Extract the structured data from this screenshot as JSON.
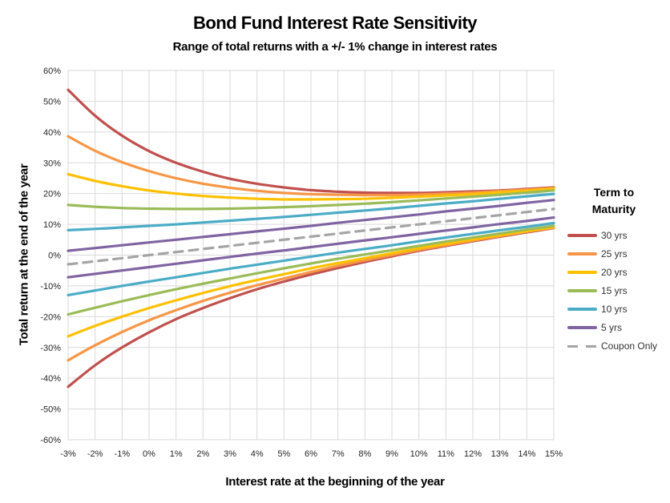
{
  "chart_data": {
    "type": "line",
    "title": "Bond Fund Interest Rate Sensitivity",
    "subtitle": "Range of total returns with a +/- 1% change in interest rates",
    "xlabel": "Interest rate at the beginning of the year",
    "ylabel": "Total return at the end of the year",
    "legend_title": "Term to Maturity",
    "legend_position": "right",
    "grid": true,
    "xlim": [
      -3,
      15
    ],
    "ylim": [
      -60,
      60
    ],
    "x": [
      -3,
      -2,
      -1,
      0,
      1,
      2,
      3,
      4,
      5,
      6,
      7,
      8,
      9,
      10,
      11,
      12,
      13,
      14,
      15
    ],
    "x_tick_labels": [
      "-3%",
      "-2%",
      "-1%",
      "0%",
      "1%",
      "2%",
      "3%",
      "4%",
      "5%",
      "6%",
      "7%",
      "8%",
      "9%",
      "10%",
      "11%",
      "12%",
      "13%",
      "14%",
      "15%"
    ],
    "y_ticks": [
      60,
      50,
      40,
      30,
      20,
      10,
      0,
      -10,
      -20,
      -30,
      -40,
      -50,
      -60
    ],
    "y_tick_labels": [
      "60%",
      "50%",
      "40%",
      "30%",
      "20%",
      "10%",
      "0%",
      "-10%",
      "-20%",
      "-30%",
      "-40%",
      "-50%",
      "-60%"
    ],
    "colors": {
      "grid": "#D9D9D9",
      "plot_border": "#D9D9D9",
      "tick_text": "#262626"
    },
    "series": [
      {
        "name": "30 yrs",
        "color": "#C0504D",
        "style": "solid",
        "upper": [
          53.7,
          45.3,
          38.8,
          33.8,
          30.0,
          27.1,
          24.8,
          23.2,
          22.0,
          21.1,
          20.6,
          20.3,
          20.2,
          20.2,
          20.4,
          20.7,
          21.0,
          21.5,
          22.0
        ],
        "lower": [
          -42.8,
          -35.8,
          -30.0,
          -25.1,
          -20.8,
          -17.2,
          -14.0,
          -11.1,
          -8.6,
          -6.3,
          -4.2,
          -2.2,
          -0.4,
          1.4,
          3.0,
          4.5,
          6.0,
          7.4,
          8.8
        ]
      },
      {
        "name": "25 yrs",
        "color": "#F79646",
        "style": "solid",
        "upper": [
          38.6,
          33.9,
          30.2,
          27.3,
          25.0,
          23.2,
          21.9,
          20.9,
          20.2,
          19.8,
          19.6,
          19.5,
          19.5,
          19.7,
          20.0,
          20.3,
          20.8,
          21.3,
          21.8
        ],
        "lower": [
          -34.2,
          -29.3,
          -25.0,
          -21.2,
          -17.9,
          -14.9,
          -12.2,
          -9.8,
          -7.6,
          -5.5,
          -3.5,
          -1.7,
          0.0,
          1.7,
          3.2,
          4.7,
          6.2,
          7.6,
          8.9
        ]
      },
      {
        "name": "20 yrs",
        "color": "#FFC000",
        "style": "solid",
        "upper": [
          26.3,
          24.1,
          22.4,
          21.0,
          20.0,
          19.2,
          18.7,
          18.3,
          18.1,
          18.1,
          18.2,
          18.3,
          18.6,
          19.0,
          19.4,
          19.8,
          20.4,
          20.9,
          21.6
        ],
        "lower": [
          -26.4,
          -23.0,
          -20.0,
          -17.2,
          -14.7,
          -12.3,
          -10.1,
          -8.1,
          -6.2,
          -4.3,
          -2.6,
          -1.0,
          0.6,
          2.2,
          3.6,
          5.1,
          6.4,
          7.8,
          9.1
        ]
      },
      {
        "name": "15 yrs",
        "color": "#9BBB59",
        "style": "solid",
        "upper": [
          16.3,
          15.7,
          15.3,
          15.1,
          15.0,
          15.0,
          15.1,
          15.3,
          15.6,
          15.9,
          16.3,
          16.7,
          17.2,
          17.8,
          18.4,
          19.0,
          19.6,
          20.3,
          21.0
        ],
        "lower": [
          -19.3,
          -17.1,
          -15.0,
          -13.0,
          -11.1,
          -9.3,
          -7.6,
          -5.9,
          -4.3,
          -2.7,
          -1.2,
          0.2,
          1.6,
          3.0,
          4.4,
          5.7,
          7.0,
          8.3,
          9.5
        ]
      },
      {
        "name": "10 yrs",
        "color": "#4BACC6",
        "style": "solid",
        "upper": [
          8.1,
          8.5,
          9.0,
          9.5,
          10.0,
          10.6,
          11.2,
          11.8,
          12.4,
          13.1,
          13.8,
          14.5,
          15.2,
          16.0,
          16.8,
          17.5,
          18.3,
          19.1,
          19.9
        ],
        "lower": [
          -13.0,
          -11.5,
          -10.0,
          -8.6,
          -7.2,
          -5.8,
          -4.4,
          -3.1,
          -1.8,
          -0.5,
          0.8,
          2.0,
          3.2,
          4.5,
          5.7,
          6.9,
          8.1,
          9.2,
          10.4
        ]
      },
      {
        "name": "5 yrs",
        "color": "#8064A2",
        "style": "solid",
        "upper": [
          1.4,
          2.3,
          3.2,
          4.1,
          5.0,
          5.9,
          6.8,
          7.7,
          8.6,
          9.5,
          10.5,
          11.4,
          12.3,
          13.2,
          14.2,
          15.1,
          16.0,
          17.0,
          17.9
        ],
        "lower": [
          -7.2,
          -6.1,
          -5.0,
          -3.9,
          -2.8,
          -1.7,
          -0.6,
          0.5,
          1.5,
          2.6,
          3.7,
          4.8,
          5.8,
          6.9,
          8.0,
          9.0,
          10.1,
          11.1,
          12.2
        ]
      },
      {
        "name": "Coupon Only",
        "color": "#A5A5A5",
        "style": "dashed",
        "values": [
          -3,
          -2,
          -1,
          0,
          1,
          2,
          3,
          4,
          5,
          6,
          7,
          8,
          9,
          10,
          11,
          12,
          13,
          14,
          15
        ]
      }
    ]
  }
}
